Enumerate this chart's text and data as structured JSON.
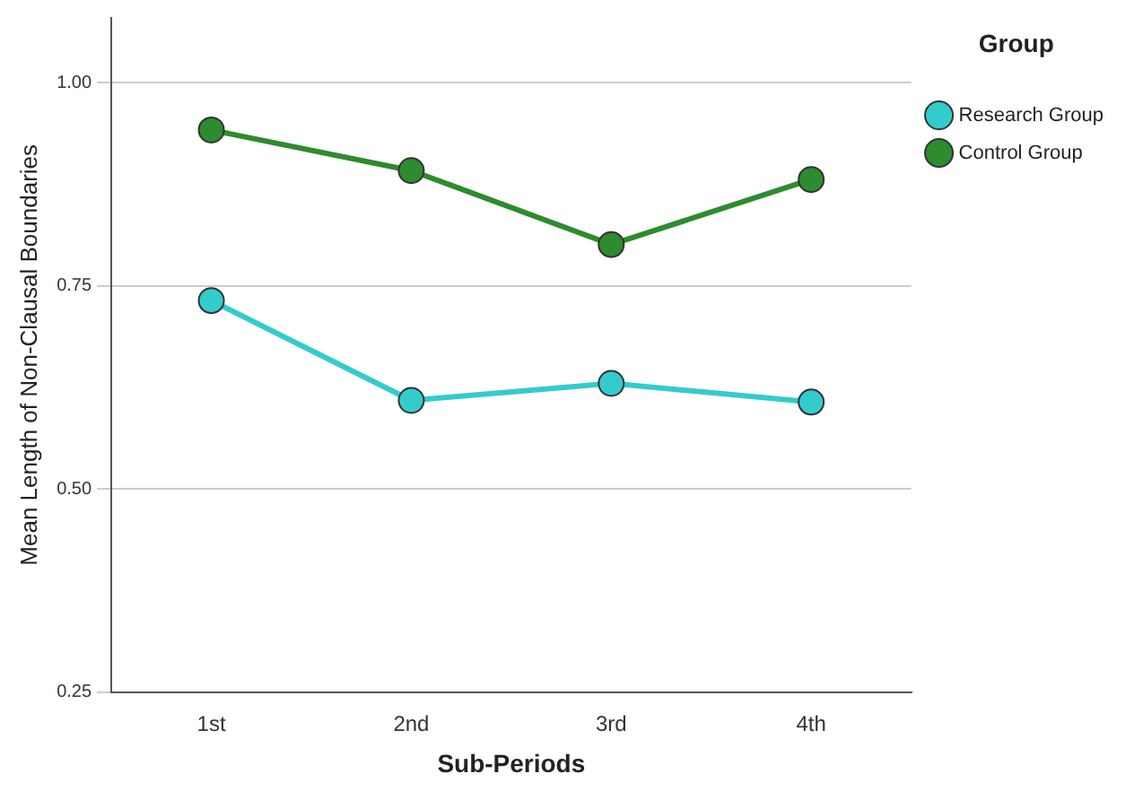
{
  "chart_data": {
    "type": "line",
    "xlabel": "Sub-Periods",
    "ylabel": "Mean Length of Non-Clausal Boundaries",
    "legend_title": "Group",
    "categories": [
      "1st",
      "2nd",
      "3rd",
      "4th"
    ],
    "series": [
      {
        "name": "Research Group",
        "color": "#33cccc",
        "values": [
          0.732,
          0.609,
          0.63,
          0.607
        ]
      },
      {
        "name": "Control Group",
        "color": "#2e8b2e",
        "values": [
          0.942,
          0.892,
          0.801,
          0.881
        ]
      }
    ],
    "ylim": [
      0.25,
      1.08
    ],
    "yticks": [
      0.25,
      {
        "value": 0.5,
        "label": "0.50"
      },
      {
        "value": 0.75,
        "label": "0.75"
      },
      {
        "value": 1,
        "label": "1.00"
      }
    ],
    "grid": "y",
    "legend": "top right",
    "marker": "circle",
    "line_style": "solid"
  }
}
